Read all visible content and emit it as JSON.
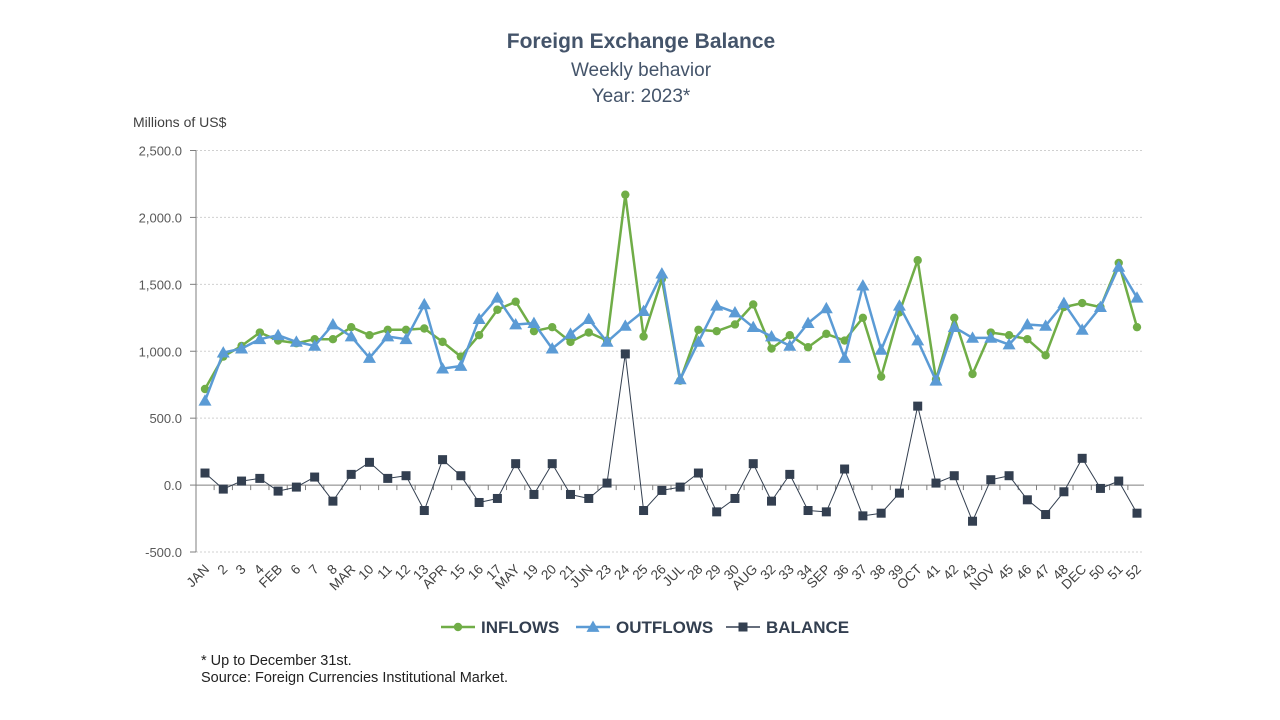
{
  "chart_data": {
    "type": "line",
    "title": "Foreign Exchange Balance",
    "subtitle": "Weekly behavior",
    "subtitle2": "Year: 2023*",
    "ylabel": "Millions of US$",
    "ylim": [
      -500,
      2500
    ],
    "yticks": [
      "-500.0",
      "0.0",
      "500.0",
      "1,000.0",
      "1,500.0",
      "2,000.0",
      "2,500.0"
    ],
    "ytick_values": [
      -500,
      0,
      500,
      1000,
      1500,
      2000,
      2500
    ],
    "grid": true,
    "legend_position": "bottom",
    "categories": [
      "JAN",
      "2",
      "3",
      "4",
      "FEB",
      "6",
      "7",
      "8",
      "MAR",
      "10",
      "11",
      "12",
      "13",
      "APR",
      "15",
      "16",
      "17",
      "MAY",
      "19",
      "20",
      "21",
      "JUN",
      "23",
      "24",
      "25",
      "26",
      "JUL",
      "28",
      "29",
      "30",
      "AUG",
      "32",
      "33",
      "34",
      "SEP",
      "36",
      "37",
      "38",
      "39",
      "OCT",
      "41",
      "42",
      "43",
      "NOV",
      "45",
      "46",
      "47",
      "48",
      "DEC",
      "50",
      "51",
      "52"
    ],
    "series": [
      {
        "name": "INFLOWS",
        "color": "#70ad47",
        "marker": "circle",
        "values": [
          718,
          960,
          1040,
          1140,
          1080,
          1060,
          1090,
          1090,
          1180,
          1120,
          1160,
          1160,
          1170,
          1070,
          960,
          1120,
          1310,
          1370,
          1150,
          1180,
          1070,
          1140,
          1080,
          2170,
          1110,
          1540,
          780,
          1160,
          1150,
          1200,
          1350,
          1020,
          1120,
          1030,
          1130,
          1080,
          1250,
          810,
          1290,
          1680,
          790,
          1250,
          830,
          1140,
          1120,
          1090,
          970,
          1330,
          1360,
          1330,
          1660,
          1180
        ]
      },
      {
        "name": "OUTFLOWS",
        "color": "#5b9bd5",
        "marker": "triangle",
        "values": [
          630,
          990,
          1020,
          1090,
          1120,
          1070,
          1040,
          1200,
          1110,
          950,
          1110,
          1090,
          1350,
          870,
          890,
          1240,
          1400,
          1200,
          1210,
          1020,
          1130,
          1240,
          1070,
          1190,
          1300,
          1580,
          790,
          1070,
          1340,
          1290,
          1180,
          1110,
          1040,
          1210,
          1320,
          950,
          1490,
          1010,
          1340,
          1080,
          780,
          1180,
          1100,
          1100,
          1050,
          1200,
          1190,
          1360,
          1160,
          1330,
          1630,
          1400
        ]
      },
      {
        "name": "BALANCE",
        "color": "#333f50",
        "marker": "square",
        "values": [
          90,
          -30,
          30,
          50,
          -45,
          -15,
          60,
          -120,
          80,
          170,
          50,
          70,
          -190,
          190,
          70,
          -130,
          -100,
          160,
          -70,
          160,
          -70,
          -100,
          15,
          980,
          -190,
          -40,
          -15,
          90,
          -200,
          -100,
          160,
          -120,
          80,
          -190,
          -200,
          120,
          -230,
          -210,
          -60,
          590,
          15,
          70,
          -270,
          40,
          70,
          -110,
          -220,
          -50,
          200,
          -25,
          30,
          -210
        ]
      }
    ]
  },
  "footnotes": {
    "line1": "* Up to December 31st.",
    "line2": "Source: Foreign Currencies Institutional Market."
  }
}
